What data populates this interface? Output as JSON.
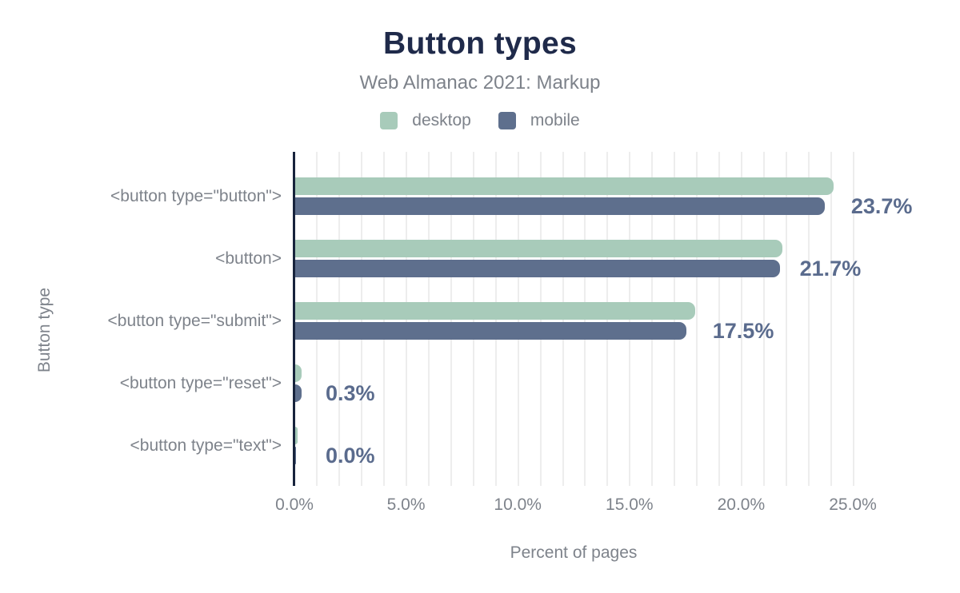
{
  "header": {
    "title": "Button types",
    "subtitle": "Web Almanac 2021: Markup"
  },
  "legend": {
    "items": [
      {
        "label": "desktop",
        "color": "#a8cbba"
      },
      {
        "label": "mobile",
        "color": "#5e6f8d"
      }
    ]
  },
  "axes": {
    "x_title": "Percent of pages",
    "y_title": "Button type",
    "x_ticks": [
      "0.0%",
      "5.0%",
      "10.0%",
      "15.0%",
      "20.0%",
      "25.0%"
    ]
  },
  "chart_data": {
    "type": "bar",
    "orientation": "horizontal",
    "title": "Button types",
    "subtitle": "Web Almanac 2021: Markup",
    "xlabel": "Percent of pages",
    "ylabel": "Button type",
    "categories": [
      "<button type=\"button\">",
      "<button>",
      "<button type=\"submit\">",
      "<button type=\"reset\">",
      "<button type=\"text\">"
    ],
    "series": [
      {
        "name": "desktop",
        "color": "#a8cbba",
        "values": [
          24.1,
          21.8,
          17.9,
          0.3,
          0.1
        ]
      },
      {
        "name": "mobile",
        "color": "#5e6f8d",
        "values": [
          23.7,
          21.7,
          17.5,
          0.3,
          0.0
        ]
      }
    ],
    "value_labels": [
      "23.7%",
      "21.7%",
      "17.5%",
      "0.3%",
      "0.0%"
    ],
    "xlim": [
      0,
      25
    ],
    "x_tick_step": 5,
    "minor_grid_step": 1,
    "grid": true,
    "legend_position": "top"
  },
  "colors": {
    "title": "#1f2a4a",
    "gray_text": "#7e838b",
    "value_label": "#5a6b8d",
    "axis_line": "#17233c",
    "gridline": "#ededed",
    "desktop_bar": "#a8cbba",
    "mobile_bar": "#5e6f8d",
    "background": "#ffffff"
  }
}
